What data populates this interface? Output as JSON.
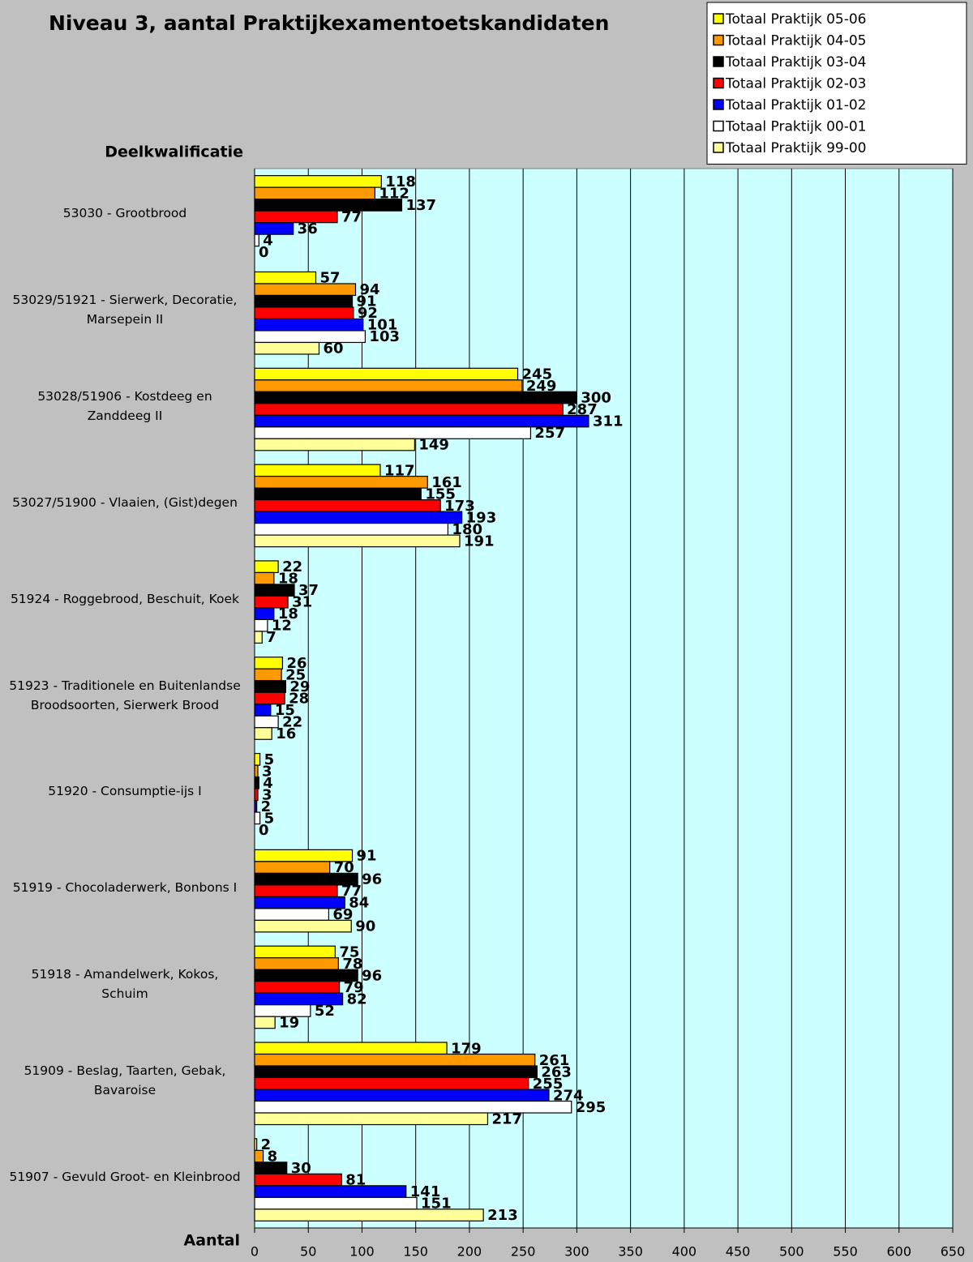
{
  "chart_data": {
    "type": "barh",
    "title": "Niveau 3, aantal Praktijkexamentoetskandidaten",
    "y_label": "Deelkwalificatie",
    "x_label": "Aantal",
    "categories": [
      "53030 - Grootbrood",
      "53029/51921 - Sierwerk, Decoratie, Marsepein II",
      "53028/51906 - Kostdeeg en Zanddeeg II",
      "53027/51900 - Vlaaien, (Gist)degen",
      "51924 - Roggebrood, Beschuit, Koek",
      "51923 - Traditionele en Buitenlandse Broodsoorten, Sierwerk Brood",
      "51920 - Consumptie-ijs I",
      "51919 - Chocoladerwerk, Bonbons I",
      "51918 - Amandelwerk, Kokos, Schuim",
      "51909 - Beslag, Taarten, Gebak, Bavaroise",
      "51907 - Gevuld Groot- en Kleinbrood"
    ],
    "series": [
      {
        "name": "Totaal Praktijk 05-06",
        "color": "#ffff00",
        "values": [
          118,
          57,
          245,
          117,
          22,
          26,
          5,
          91,
          75,
          179,
          2
        ]
      },
      {
        "name": "Totaal Praktijk 04-05",
        "color": "#ff9900",
        "values": [
          112,
          94,
          249,
          161,
          18,
          25,
          3,
          70,
          78,
          261,
          8
        ]
      },
      {
        "name": "Totaal Praktijk 03-04",
        "color": "#000000",
        "values": [
          137,
          91,
          300,
          155,
          37,
          29,
          4,
          96,
          96,
          263,
          30
        ]
      },
      {
        "name": "Totaal Praktijk 02-03",
        "color": "#ff0000",
        "values": [
          77,
          92,
          287,
          173,
          31,
          28,
          3,
          77,
          79,
          255,
          81
        ]
      },
      {
        "name": "Totaal Praktijk 01-02",
        "color": "#0000ff",
        "values": [
          36,
          101,
          311,
          193,
          18,
          15,
          2,
          84,
          82,
          274,
          141
        ]
      },
      {
        "name": "Totaal Praktijk 00-01",
        "color": "#ffffff",
        "values": [
          4,
          103,
          257,
          180,
          12,
          22,
          5,
          69,
          52,
          295,
          151
        ]
      },
      {
        "name": "Totaal Praktijk 99-00",
        "color": "#ffff99",
        "values": [
          0,
          60,
          149,
          191,
          7,
          16,
          0,
          90,
          19,
          217,
          213
        ]
      }
    ],
    "xlim": [
      0,
      650
    ],
    "xticks": [
      0,
      50,
      100,
      150,
      200,
      250,
      300,
      350,
      400,
      450,
      500,
      550,
      600,
      650
    ],
    "grid": true,
    "legend": "upper right",
    "plot_background": "#ccffff",
    "background": "#c0c0c0"
  }
}
